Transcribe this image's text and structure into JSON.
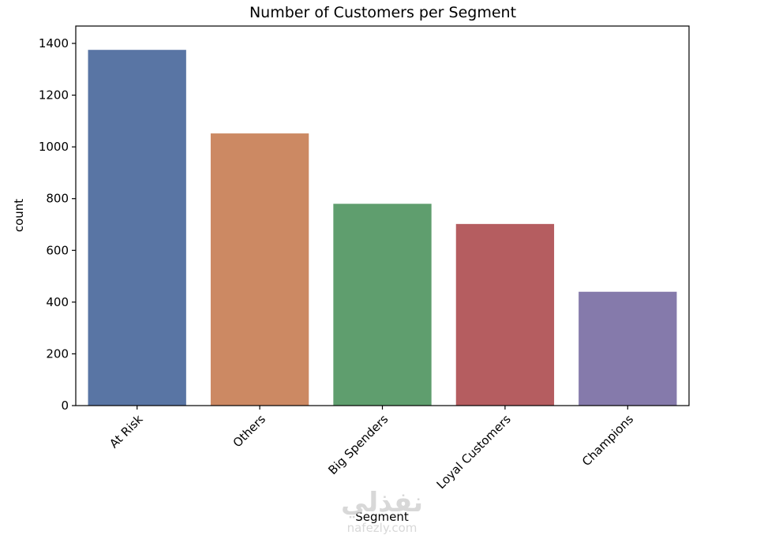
{
  "chart_data": {
    "type": "bar",
    "title": "Number of Customers per Segment",
    "xlabel": "Segment",
    "ylabel": "count",
    "categories": [
      "At Risk",
      "Others",
      "Big Spenders",
      "Loyal Customers",
      "Champions"
    ],
    "values": [
      1375,
      1052,
      780,
      702,
      440
    ],
    "colors": [
      "#5975a4",
      "#cc8963",
      "#5f9e6e",
      "#b55d60",
      "#857aab"
    ],
    "ylim": [
      0,
      1400
    ],
    "yticks": [
      0,
      200,
      400,
      600,
      800,
      1000,
      1200,
      1400
    ],
    "xtick_rotation": 45,
    "grid": false
  },
  "watermark": {
    "text": "نفذلي",
    "subtext": "nafezly.com"
  }
}
